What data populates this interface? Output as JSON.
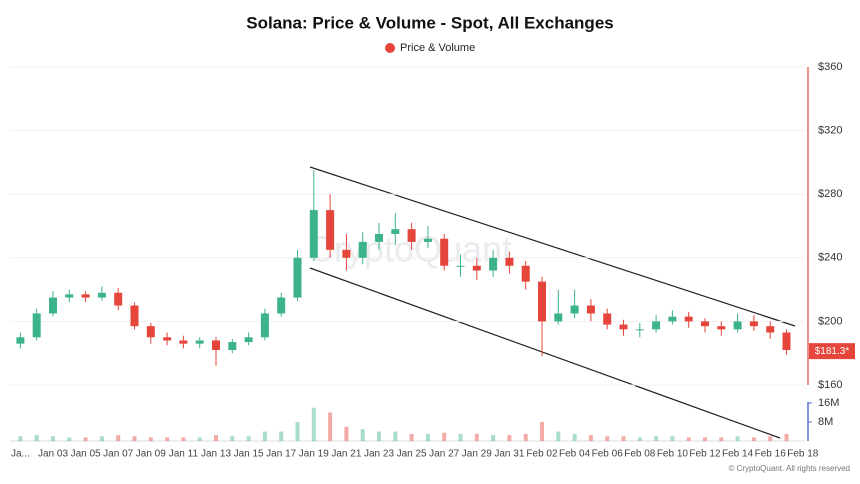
{
  "chart_data": {
    "type": "candlestick",
    "title": "Solana: Price & Volume - Spot, All Exchanges",
    "legend": "Price & Volume",
    "legend_color": "#e5453a",
    "watermark": "CryptoQuant",
    "footer": "© CryptoQuant. All rights reserved",
    "categories": [
      "Ja...",
      null,
      "Jan 03",
      null,
      "Jan 05",
      null,
      "Jan 07",
      null,
      "Jan 09",
      null,
      "Jan 11",
      null,
      "Jan 13",
      null,
      "Jan 15",
      null,
      "Jan 17",
      null,
      "Jan 19",
      null,
      "Jan 21",
      null,
      "Jan 23",
      null,
      "Jan 25",
      null,
      "Jan 27",
      null,
      "Jan 29",
      null,
      "Jan 31",
      null,
      "Feb 02",
      null,
      "Feb 04",
      null,
      "Feb 06",
      null,
      "Feb 08",
      null,
      "Feb 10",
      null,
      "Feb 12",
      null,
      "Feb 14",
      null,
      "Feb 16",
      null,
      "Feb 18"
    ],
    "open": [
      186,
      190,
      205,
      215,
      217,
      215,
      218,
      210,
      197,
      190,
      188,
      186,
      188,
      182,
      187,
      190,
      205,
      215,
      240,
      270,
      245,
      240,
      250,
      255,
      258,
      250,
      252,
      235,
      235,
      232,
      240,
      235,
      225,
      200,
      205,
      210,
      205,
      198,
      195,
      195,
      200,
      203,
      200,
      197,
      195,
      200,
      197,
      193,
      null
    ],
    "high": [
      193,
      208,
      219,
      220,
      219,
      222,
      221,
      212,
      199,
      193,
      191,
      190,
      190,
      189,
      193,
      208,
      218,
      245,
      295,
      280,
      255,
      256,
      262,
      268,
      262,
      260,
      255,
      242,
      240,
      245,
      244,
      238,
      228,
      220,
      220,
      214,
      208,
      201,
      199,
      204,
      207,
      206,
      202,
      200,
      205,
      204,
      200,
      195,
      null
    ],
    "low": [
      183,
      188,
      203,
      212,
      212,
      213,
      207,
      195,
      186,
      185,
      183,
      183,
      172,
      180,
      185,
      188,
      203,
      213,
      238,
      240,
      232,
      236,
      245,
      248,
      245,
      246,
      232,
      228,
      226,
      228,
      230,
      220,
      178,
      198,
      202,
      200,
      195,
      191,
      190,
      193,
      198,
      196,
      193,
      191,
      193,
      194,
      189,
      179,
      null
    ],
    "close": [
      190,
      205,
      215,
      217,
      215,
      218,
      210,
      197,
      190,
      188,
      186,
      188,
      182,
      187,
      190,
      205,
      215,
      240,
      270,
      245,
      240,
      250,
      255,
      258,
      250,
      252,
      235,
      235,
      232,
      240,
      235,
      225,
      200,
      205,
      210,
      205,
      198,
      195,
      195,
      200,
      203,
      200,
      197,
      195,
      200,
      197,
      193,
      182,
      null
    ],
    "volume": [
      2000000,
      2500000,
      2000000,
      1500000,
      1500000,
      2000000,
      2500000,
      2000000,
      1500000,
      1500000,
      1500000,
      1500000,
      2500000,
      2000000,
      2000000,
      4000000,
      4000000,
      8000000,
      14000000,
      12000000,
      6000000,
      5000000,
      4000000,
      4000000,
      3000000,
      3000000,
      3500000,
      3000000,
      3000000,
      2500000,
      2500000,
      3000000,
      8000000,
      4000000,
      3000000,
      2500000,
      2000000,
      2000000,
      1500000,
      2000000,
      2000000,
      1500000,
      1500000,
      1500000,
      2000000,
      1500000,
      2000000,
      3000000,
      null
    ],
    "up_color": "#3cb38a",
    "down_color": "#e5453a",
    "ylim": [
      160,
      360
    ],
    "yticks": [
      {
        "value": 160,
        "label": "$160"
      },
      {
        "value": 200,
        "label": "$200"
      },
      {
        "value": 240,
        "label": "$240"
      },
      {
        "value": 280,
        "label": "$280"
      },
      {
        "value": 320,
        "label": "$320"
      },
      {
        "value": 360,
        "label": "$360"
      }
    ],
    "y2lim": [
      0,
      16000000
    ],
    "y2ticks": [
      {
        "value": 8000000,
        "label": "8M"
      },
      {
        "value": 16000000,
        "label": "16M"
      }
    ],
    "last_price": 181.3,
    "last_price_label": "$181.3*"
  }
}
